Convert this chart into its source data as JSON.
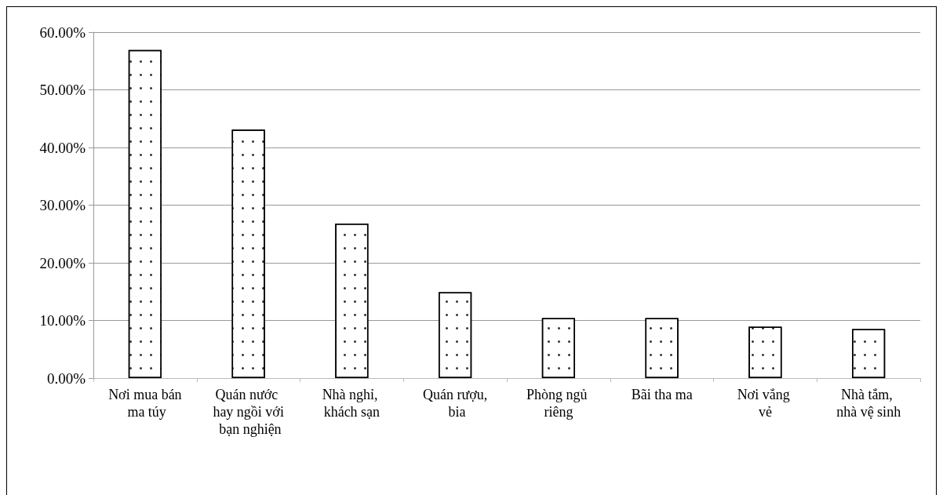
{
  "chart_data": {
    "type": "bar",
    "categories": [
      "Nơi mua bán ma túy",
      "Quán nước hay ngồi với bạn nghiện",
      "Nhà nghỉ, khách sạn",
      "Quán rượu, bia",
      "Phòng ngủ riêng",
      "Bãi tha ma",
      "Nơi vắng vẻ",
      "Nhà tắm, nhà vệ sinh"
    ],
    "values": [
      56.9,
      43.1,
      26.8,
      14.9,
      10.4,
      10.4,
      8.9,
      8.5
    ],
    "color": "#ffffff",
    "ylim": [
      0,
      60
    ],
    "yticks": [
      {
        "value": 0,
        "label": "0.00%"
      },
      {
        "value": 10,
        "label": "10.00%"
      },
      {
        "value": 20,
        "label": "20.00%"
      },
      {
        "value": 30,
        "label": "30.00%"
      },
      {
        "value": 40,
        "label": "40.00%"
      },
      {
        "value": 50,
        "label": "50.00%"
      },
      {
        "value": 60,
        "label": "60.00%"
      }
    ],
    "grid": "y"
  }
}
